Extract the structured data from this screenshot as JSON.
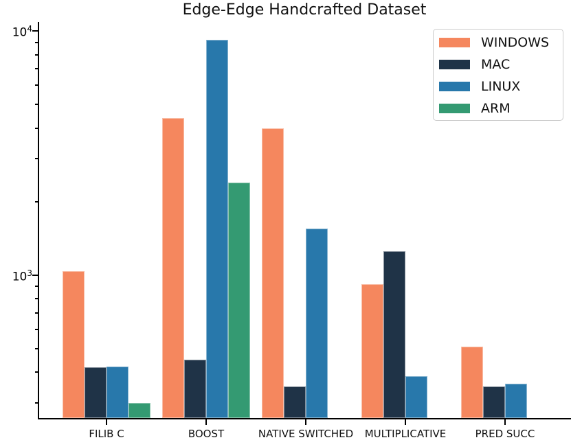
{
  "chart_data": {
    "type": "bar",
    "title": "Edge-Edge Handcrafted Dataset",
    "xlabel": "",
    "ylabel": "",
    "yscale": "log",
    "ylim": [
      260,
      10900
    ],
    "grid": false,
    "legend_position": "upper right",
    "categories": [
      "FILIB C",
      "BOOST",
      "NATIVE SWITCHED",
      "MULTIPLICATIVE",
      "PRED SUCC"
    ],
    "series": [
      {
        "name": "WINDOWS",
        "color": "#F5875E",
        "values": [
          1040,
          4400,
          4000,
          920,
          510
        ]
      },
      {
        "name": "MAC",
        "color": "#1F3347",
        "values": [
          420,
          450,
          350,
          1250,
          350
        ]
      },
      {
        "name": "LINUX",
        "color": "#2878AB",
        "values": [
          422,
          9200,
          1550,
          385,
          360
        ]
      },
      {
        "name": "ARM",
        "color": "#349A72",
        "values": [
          300,
          2400,
          null,
          null,
          null
        ]
      }
    ],
    "y_major_ticks": [
      {
        "value": 10000,
        "base": "10",
        "exp": "4"
      },
      {
        "value": 1000,
        "base": "10",
        "exp": "3"
      }
    ],
    "y_minor_ticks": [
      9000,
      8000,
      7000,
      6000,
      5000,
      4000,
      3000,
      2000,
      900,
      800,
      700,
      600,
      500,
      400,
      300
    ]
  }
}
